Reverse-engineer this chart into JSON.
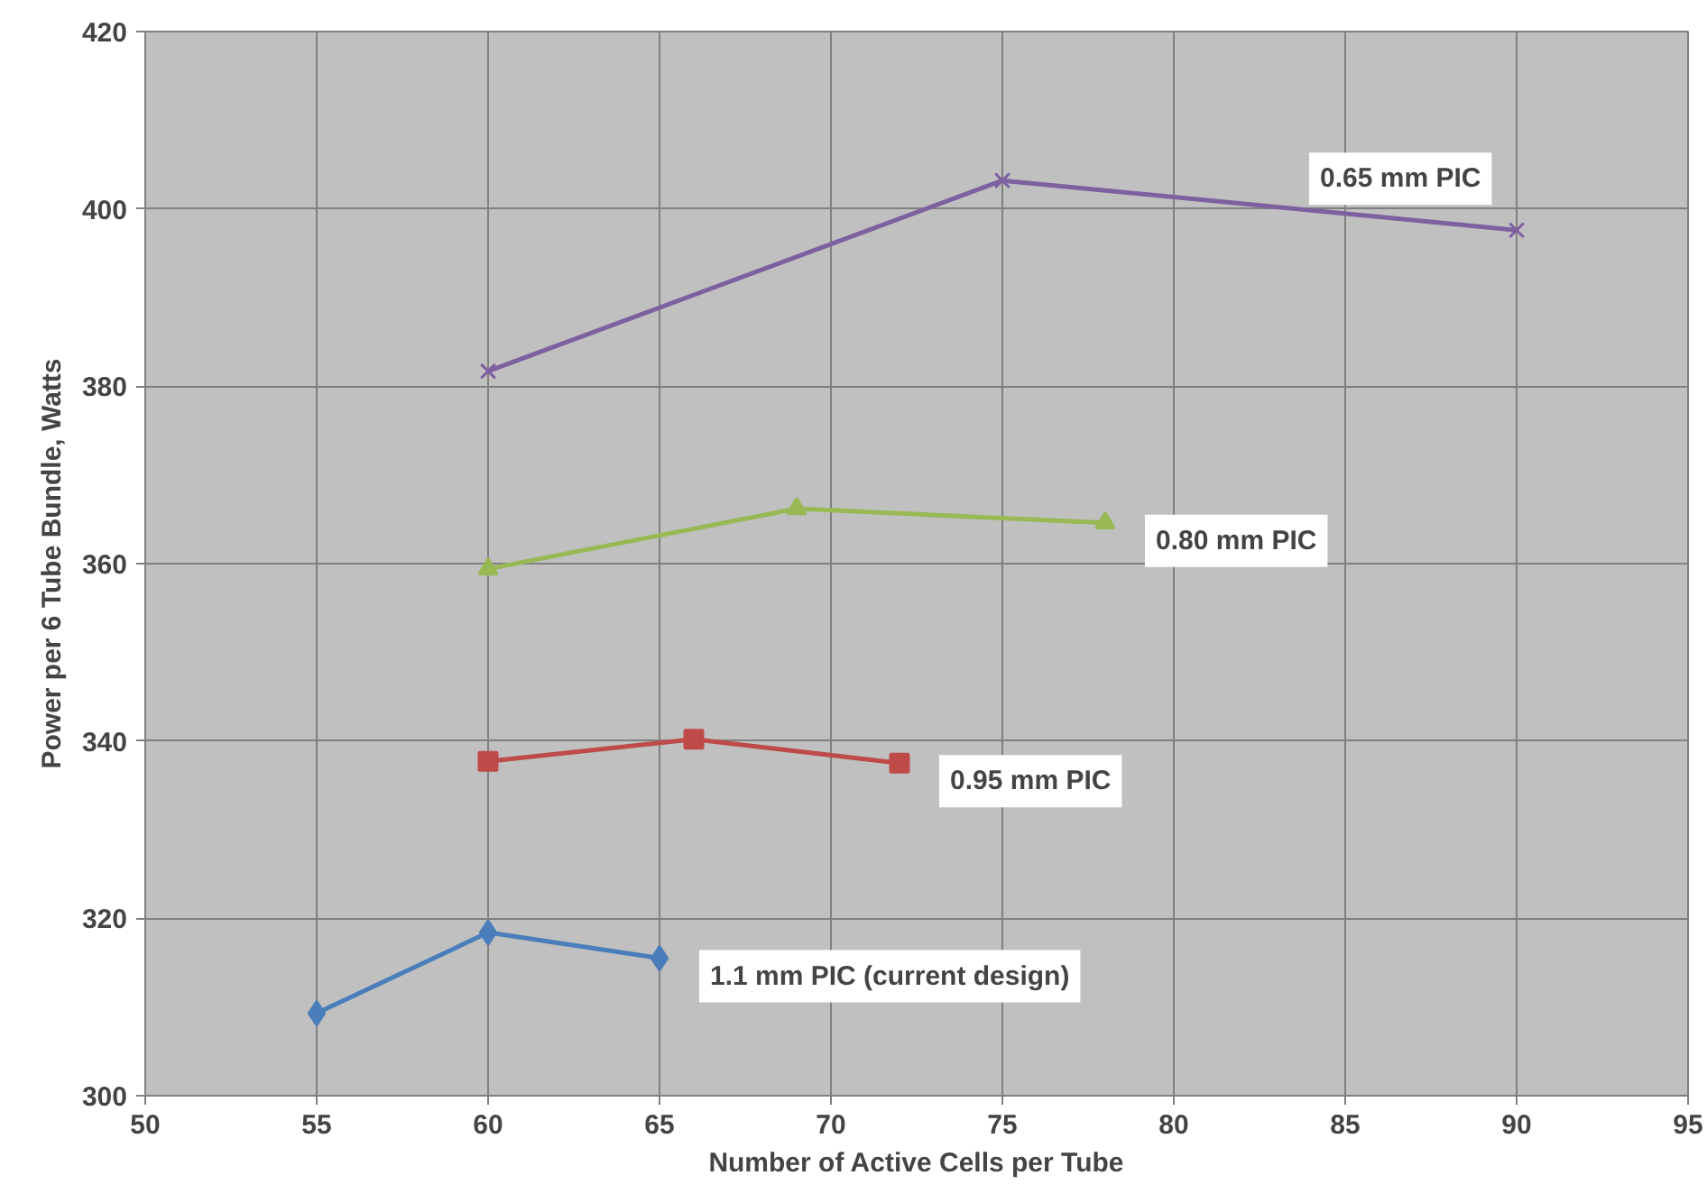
{
  "chart_data": {
    "type": "line",
    "xlabel": "Number of Active Cells per Tube",
    "ylabel": "Power per 6 Tube Bundle, Watts",
    "xlim": [
      50,
      95
    ],
    "xticks": [
      50,
      55,
      60,
      65,
      70,
      75,
      80,
      85,
      90,
      95
    ],
    "ylim": [
      300,
      420
    ],
    "yticks": [
      300,
      320,
      340,
      360,
      380,
      400,
      420
    ],
    "grid": true,
    "series": [
      {
        "name": "1.1 mm PIC (current design)",
        "color": "#4a7ebb",
        "marker": "diamond",
        "x": [
          55,
          60,
          65
        ],
        "values": [
          309.3,
          318.4,
          315.5
        ]
      },
      {
        "name": "0.95 mm PIC",
        "color": "#be4b48",
        "marker": "square",
        "x": [
          60,
          66,
          72
        ],
        "values": [
          337.7,
          340.2,
          337.5
        ]
      },
      {
        "name": "0.80 mm PIC",
        "color": "#98b954",
        "marker": "triangle",
        "x": [
          60,
          69,
          78
        ],
        "values": [
          359.4,
          366.2,
          364.6
        ]
      },
      {
        "name": "0.65 mm PIC",
        "color": "#7d60a0",
        "marker": "cross",
        "x": [
          60,
          75,
          90
        ],
        "values": [
          381.7,
          403.2,
          397.6
        ]
      }
    ]
  }
}
